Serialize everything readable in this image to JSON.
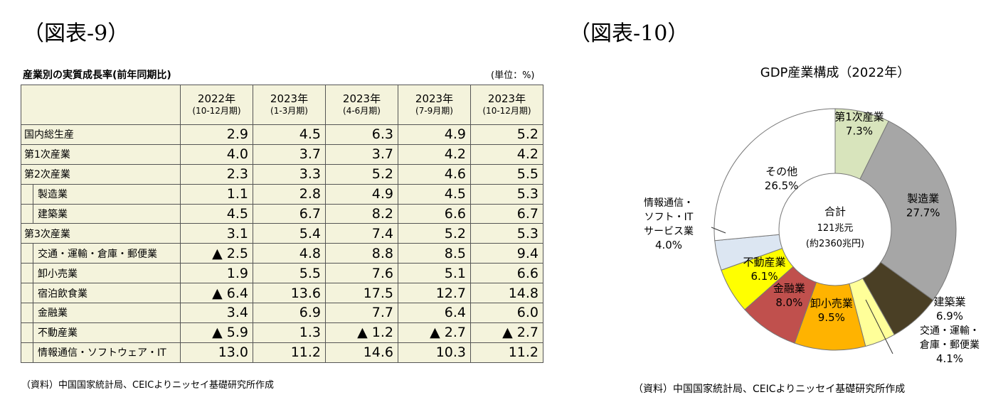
{
  "figure9": {
    "label": "（図表-9）",
    "table_title": "産業別の実質成長率(前年同期比)",
    "unit": "(単位：%)",
    "columns": [
      {
        "year": "2022年",
        "period": "(10-12月期)"
      },
      {
        "year": "2023年",
        "period": "(1-3月期)"
      },
      {
        "year": "2023年",
        "period": "(4-6月期)"
      },
      {
        "year": "2023年",
        "period": "(7-9月期)"
      },
      {
        "year": "2023年",
        "period": "(10-12月期)"
      }
    ],
    "rows": [
      {
        "label": "国内総生産",
        "values": [
          "2.9",
          "4.5",
          "6.3",
          "4.9",
          "5.2"
        ]
      },
      {
        "label": "第1次産業",
        "values": [
          "4.0",
          "3.7",
          "3.7",
          "4.2",
          "4.2"
        ]
      },
      {
        "label": "第2次産業",
        "values": [
          "2.3",
          "3.3",
          "5.2",
          "4.6",
          "5.5"
        ]
      },
      {
        "label": "製造業",
        "values": [
          "1.1",
          "2.8",
          "4.9",
          "4.5",
          "5.3"
        ]
      },
      {
        "label": "建築業",
        "values": [
          "4.5",
          "6.7",
          "8.2",
          "6.6",
          "6.7"
        ]
      },
      {
        "label": "第3次産業",
        "values": [
          "3.1",
          "5.4",
          "7.4",
          "5.2",
          "5.3"
        ]
      },
      {
        "label": "交通・運輸・倉庫・郵便業",
        "values": [
          "▲ 2.5",
          "4.8",
          "8.8",
          "8.5",
          "9.4"
        ]
      },
      {
        "label": "卸小売業",
        "values": [
          "1.9",
          "5.5",
          "7.6",
          "5.1",
          "6.6"
        ]
      },
      {
        "label": "宿泊飲食業",
        "values": [
          "▲ 6.4",
          "13.6",
          "17.5",
          "12.7",
          "14.8"
        ]
      },
      {
        "label": "金融業",
        "values": [
          "3.4",
          "6.9",
          "7.7",
          "6.4",
          "6.0"
        ]
      },
      {
        "label": "不動産業",
        "values": [
          "▲ 5.9",
          "1.3",
          "▲ 1.2",
          "▲ 2.7",
          "▲ 2.7"
        ]
      },
      {
        "label": "情報通信・ソフトウェア・IT",
        "values": [
          "13.0",
          "11.2",
          "14.6",
          "10.3",
          "11.2"
        ]
      }
    ],
    "source": "（資料）中国国家統計局、CEICよりニッセイ基礎研究所作成"
  },
  "figure10": {
    "label": "（図表-10）",
    "source": "（資料）中国国家統計局、CEICよりニッセイ基礎研究所作成"
  },
  "chart_data": {
    "type": "pie",
    "title": "GDP産業構成（2022年）",
    "center_label": [
      "合計",
      "121兆元",
      "(約2360兆円)"
    ],
    "slices": [
      {
        "name": "第1次産業",
        "value": 7.3,
        "label": "7.3%",
        "color": "#d8e4bc"
      },
      {
        "name": "製造業",
        "value": 27.7,
        "label": "27.7%",
        "color": "#a6a6a6"
      },
      {
        "name": "建築業",
        "value": 6.9,
        "label": "6.9%",
        "color": "#4a3f25"
      },
      {
        "name": "交通・運輸・倉庫・郵便業",
        "value": 4.1,
        "label": "4.1%",
        "color": "#ffff99"
      },
      {
        "name": "卸小売業",
        "value": 9.5,
        "label": "9.5%",
        "color": "#ffb300"
      },
      {
        "name": "金融業",
        "value": 8.0,
        "label": "8.0%",
        "color": "#c0504d"
      },
      {
        "name": "不動産業",
        "value": 6.1,
        "label": "6.1%",
        "color": "#ffff00"
      },
      {
        "name": "情報通信・ソフト・ITサービス業",
        "value": 4.0,
        "label": "4.0%",
        "color": "#dce6f2"
      },
      {
        "name": "その他",
        "value": 26.5,
        "label": "26.5%",
        "color": "#ffffff"
      }
    ],
    "slice_label_lines": {
      "交通・運輸・倉庫・郵便業": [
        "交通・運輸・",
        "倉庫・郵便業"
      ],
      "情報通信・ソフト・ITサービス業": [
        "情報通信・",
        "ソフト・IT",
        "サービス業"
      ]
    }
  }
}
